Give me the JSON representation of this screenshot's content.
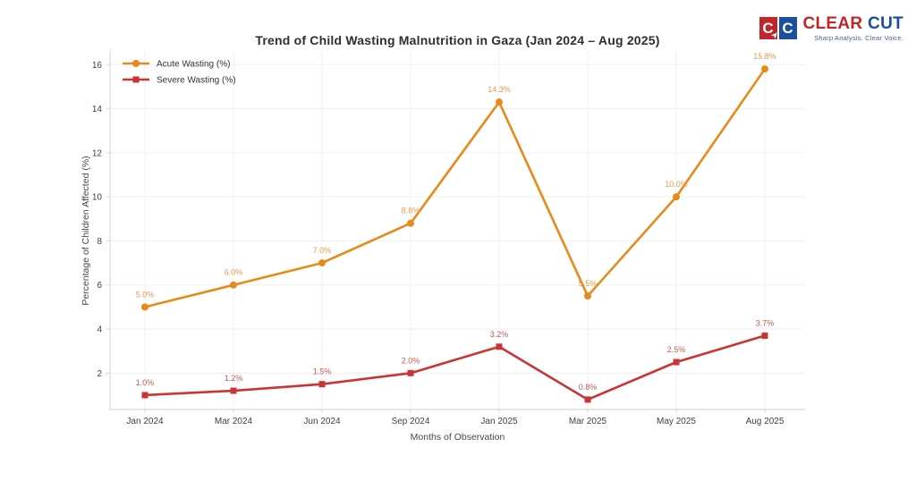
{
  "page": {
    "background": "#ffffff"
  },
  "brand": {
    "icon_letters": [
      "C",
      "C"
    ],
    "icon_colors": {
      "first_box": "#c0262c",
      "second_box": "#1c4f9c"
    },
    "wordmark": [
      {
        "text": "CLEAR",
        "color": "#c0262c"
      },
      {
        "text": "CUT",
        "color": "#1c4f9c"
      }
    ],
    "tagline": "Sharp Analysis. Clear Voice.",
    "cursor_icon": "➤"
  },
  "chart_data": {
    "type": "line",
    "title": "Trend of Child Wasting Malnutrition in Gaza (Jan 2024 – Aug 2025)",
    "xlabel": "Months of Observation",
    "ylabel": "Percentage of Children Affected (%)",
    "categories": [
      "Jan 2024",
      "Mar 2024",
      "Jun 2024",
      "Sep 2024",
      "Jan 2025",
      "Mar 2025",
      "May 2025",
      "Aug 2025"
    ],
    "series": [
      {
        "name": "Acute Wasting (%)",
        "marker": "circle",
        "color": "#e8891c",
        "label_color": "#e59c4e",
        "values": [
          5.0,
          6.0,
          7.0,
          8.8,
          14.3,
          5.5,
          10.0,
          15.8
        ],
        "point_labels": [
          "5.0%",
          "6.0%",
          "7.0%",
          "8.8%",
          "14.3%",
          "5.5%",
          "10.0%",
          "15.8%"
        ]
      },
      {
        "name": "Severe Wasting (%)",
        "marker": "square",
        "color": "#cb3434",
        "label_color": "#c45b56",
        "values": [
          1.0,
          1.2,
          1.5,
          2.0,
          3.2,
          0.8,
          2.5,
          3.7
        ],
        "point_labels": [
          "1.0%",
          "1.2%",
          "1.5%",
          "2.0%",
          "3.2%",
          "0.8%",
          "2.5%",
          "3.7%"
        ]
      }
    ],
    "yticks": [
      2,
      4,
      6,
      8,
      10,
      12,
      14,
      16
    ],
    "ylim": [
      0.35,
      16.7
    ],
    "grid": true,
    "legend_position": "upper-left",
    "colors": {
      "grid": "#f3efef",
      "spine": "#d8d8d8",
      "tick_text": "#3f3f3f",
      "legend_text": "#333333"
    }
  }
}
